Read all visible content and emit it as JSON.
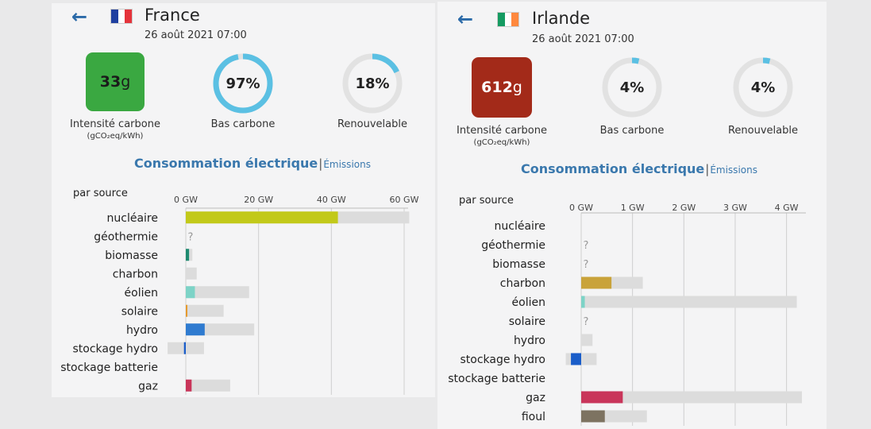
{
  "left": {
    "country": "France",
    "date": "26 août 2021 07:00",
    "flag_colors": [
      "#1f3fa0",
      "#ffffff",
      "#e5333b"
    ],
    "intensity": {
      "value": "33",
      "unit": "g",
      "color": "#3aa841",
      "text_color": "#1b1b1b"
    },
    "intensity_label": "Intensité carbone",
    "intensity_unit": "(gCO₂eq/kWh)",
    "low_carbon": {
      "value": "97%",
      "fraction": 0.97,
      "label": "Bas carbone"
    },
    "renewable": {
      "value": "18%",
      "fraction": 0.18,
      "label": "Renouvelable"
    },
    "section_title": "Consommation électrique",
    "separator": "|",
    "section_alt": "Émissions",
    "par_source": "par source",
    "chart_data": {
      "type": "bar",
      "unit": "GW",
      "xlim": [
        0,
        60
      ],
      "ticks": [
        {
          "label": "0 GW",
          "value": 0
        },
        {
          "label": "20 GW",
          "value": 20
        },
        {
          "label": "40 GW",
          "value": 40
        },
        {
          "label": "60 GW",
          "value": 60
        }
      ],
      "categories": [
        "nucléaire",
        "géothermie",
        "biomasse",
        "charbon",
        "éolien",
        "solaire",
        "hydro",
        "stockage hydro",
        "stockage batterie",
        "gaz"
      ],
      "values": [
        41.8,
        null,
        0.9,
        0,
        2.5,
        0.3,
        5.2,
        -0.5,
        null,
        1.6
      ],
      "capacity": [
        61.4,
        null,
        1.8,
        3.0,
        17.4,
        10.4,
        18.8,
        5.0,
        null,
        12.2
      ],
      "min_capacity": [
        0,
        null,
        0,
        0,
        0,
        0,
        0,
        -5.0,
        null,
        0
      ],
      "colors": [
        "#c2c91a",
        null,
        "#1f8a70",
        "#8a6a2f",
        "#7dd3c7",
        "#e59a2e",
        "#2f7bd0",
        "#1a5dc9",
        null,
        "#c9355a"
      ],
      "unknown": [
        false,
        true,
        false,
        false,
        false,
        false,
        false,
        false,
        false,
        false
      ]
    }
  },
  "right": {
    "country": "Irlande",
    "date": "26 août 2021 07:00",
    "flag_colors": [
      "#169b62",
      "#ffffff",
      "#ff883e"
    ],
    "intensity": {
      "value": "612",
      "unit": "g",
      "color": "#a32a19",
      "text_color": "#ffffff"
    },
    "intensity_label": "Intensité carbone",
    "intensity_unit": "(gCO₂eq/kWh)",
    "low_carbon": {
      "value": "4%",
      "fraction": 0.04,
      "label": "Bas carbone"
    },
    "renewable": {
      "value": "4%",
      "fraction": 0.04,
      "label": "Renouvelable"
    },
    "section_title": "Consommation électrique",
    "separator": "|",
    "section_alt": "Émissions",
    "par_source": "par source",
    "chart_data": {
      "type": "bar",
      "unit": "GW",
      "xlim": [
        0,
        4.3
      ],
      "ticks": [
        {
          "label": "0 GW",
          "value": 0
        },
        {
          "label": "1 GW",
          "value": 1
        },
        {
          "label": "2 GW",
          "value": 2
        },
        {
          "label": "3 GW",
          "value": 3
        },
        {
          "label": "4 GW",
          "value": 4
        }
      ],
      "categories": [
        "nucléaire",
        "géothermie",
        "biomasse",
        "charbon",
        "éolien",
        "solaire",
        "hydro",
        "stockage hydro",
        "stockage batterie",
        "gaz",
        "fioul"
      ],
      "values": [
        null,
        null,
        null,
        0.59,
        0.07,
        null,
        0,
        -0.2,
        null,
        0.81,
        0.46
      ],
      "capacity": [
        null,
        null,
        null,
        1.2,
        4.2,
        null,
        0.22,
        0.3,
        null,
        4.3,
        1.28
      ],
      "min_capacity": [
        null,
        null,
        null,
        0,
        0,
        null,
        0,
        -0.3,
        null,
        0,
        0
      ],
      "colors": [
        null,
        null,
        null,
        "#c9a33a",
        "#7dd3c7",
        null,
        "#2f7bd0",
        "#1a5dc9",
        null,
        "#c9355a",
        "#7d7361"
      ],
      "unknown": [
        false,
        true,
        true,
        false,
        false,
        true,
        false,
        false,
        false,
        false,
        false
      ]
    }
  }
}
